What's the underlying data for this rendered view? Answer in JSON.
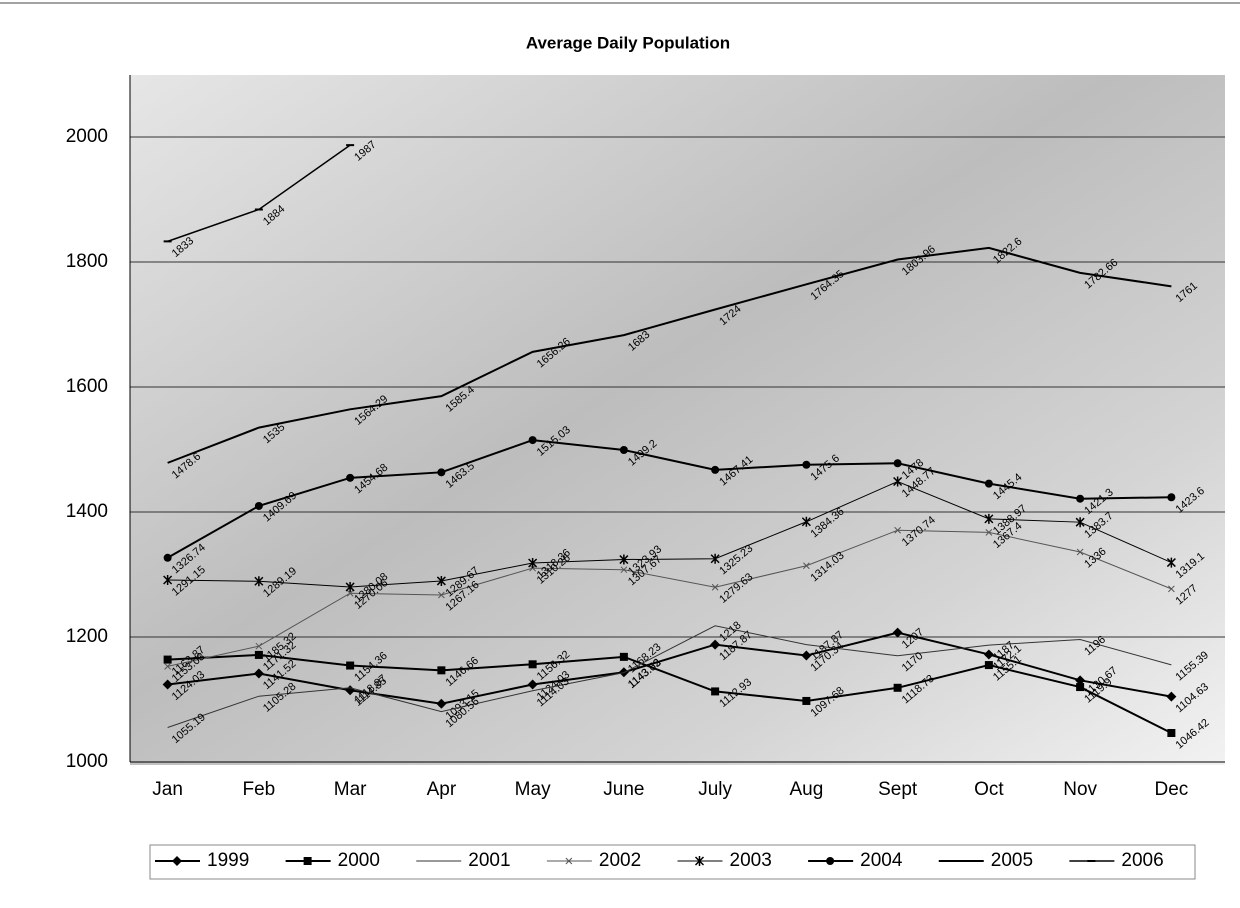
{
  "chart_data": {
    "type": "line",
    "title": "Average Daily Population",
    "categories": [
      "Jan",
      "Feb",
      "Mar",
      "Apr",
      "May",
      "June",
      "July",
      "Aug",
      "Sept",
      "Oct",
      "Nov",
      "Dec"
    ],
    "ylim": [
      1000,
      2000
    ],
    "yticks": [
      1000,
      1200,
      1400,
      1600,
      1800,
      2000
    ],
    "grid": true,
    "legend": "bottom",
    "series": [
      {
        "name": "1999",
        "color": "#000000",
        "marker": "diamond",
        "line_width": 2,
        "values": [
          1124.03,
          1141.52,
          1114.85,
          1093.15,
          1124.03,
          1143.52,
          1187.87,
          1170.34,
          1207,
          1172.1,
          1130.67,
          1104.63
        ]
      },
      {
        "name": "2000",
        "color": "#000000",
        "marker": "square",
        "line_width": 2,
        "values": [
          1163.87,
          1171.32,
          1154.36,
          1146.66,
          1156.32,
          1168.23,
          1112.93,
          1097.68,
          1118.73,
          1155.1,
          1119.9,
          1046.42
        ]
      },
      {
        "name": "2001",
        "color": "#333333",
        "marker": "none",
        "line_width": 1,
        "values": [
          1055.19,
          1105.28,
          1118.87,
          1080.56,
          1114.03,
          1143.03,
          1218,
          1187.87,
          1170,
          1187,
          1196,
          1155.39
        ]
      },
      {
        "name": "2002",
        "color": "#555555",
        "marker": "x",
        "line_width": 1,
        "values": [
          1153.03,
          1185.32,
          1270.06,
          1267.16,
          1310.26,
          1307.67,
          1279.63,
          1314.03,
          1370.74,
          1367.4,
          1336,
          1277
        ]
      },
      {
        "name": "2003",
        "color": "#000000",
        "marker": "star",
        "line_width": 1,
        "values": [
          1291.15,
          1289.19,
          1280.08,
          1289.67,
          1318.36,
          1323.93,
          1325.23,
          1384.36,
          1448.77,
          1388.97,
          1383.7,
          1319.1
        ]
      },
      {
        "name": "2004",
        "color": "#000000",
        "marker": "circle",
        "line_width": 2,
        "values": [
          1326.74,
          1409.69,
          1454.68,
          1463.5,
          1515.03,
          1499.2,
          1467.41,
          1475.6,
          1478,
          1445.4,
          1421.3,
          1423.6
        ]
      },
      {
        "name": "2005",
        "color": "#000000",
        "marker": "none",
        "line_width": 2,
        "values": [
          1478.6,
          1535,
          1564.29,
          1585.4,
          1656.26,
          1683,
          1724,
          1764.35,
          1803.96,
          1822.6,
          1782.66,
          1761
        ]
      },
      {
        "name": "2006",
        "color": "#000000",
        "marker": "dash",
        "line_width": 1.5,
        "values": [
          1833,
          1884,
          1987,
          null,
          null,
          null,
          null,
          null,
          null,
          null,
          null,
          null
        ]
      }
    ]
  }
}
